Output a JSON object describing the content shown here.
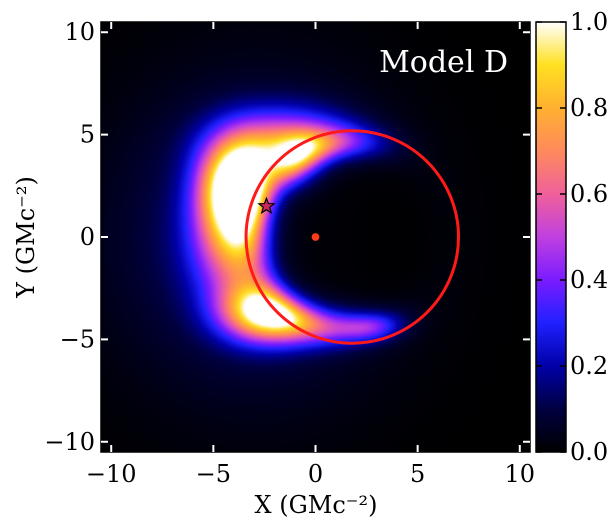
{
  "chart_data": {
    "type": "heatmap",
    "title": "Model D",
    "xlabel": "X (GMc⁻²)",
    "ylabel": "Y (GMc⁻²)",
    "xlim": [
      -10.5,
      10.5
    ],
    "ylim": [
      -10.5,
      10.5
    ],
    "xticks": [
      -10,
      -5,
      0,
      5,
      10
    ],
    "yticks": [
      -10,
      -5,
      0,
      5,
      10
    ],
    "xtick_labels": [
      "−10",
      "−5",
      "0",
      "5",
      "10"
    ],
    "ytick_labels": [
      "−10",
      "−5",
      "0",
      "5",
      "10"
    ],
    "grid": false,
    "colormap": "gnuplot2",
    "colorbar": {
      "range": [
        0.0,
        1.0
      ],
      "ticks": [
        0.0,
        0.2,
        0.4,
        0.6,
        0.8,
        1.0
      ],
      "tick_labels": [
        "0.0",
        "0.2",
        "0.4",
        "0.6",
        "0.8",
        "1.0"
      ]
    },
    "emission_blobs": [
      {
        "x": -3.8,
        "y": 2.5,
        "sx": 1.2,
        "sy": 1.5,
        "amp": 1.0
      },
      {
        "x": -3.6,
        "y": 0.0,
        "sx": 1.5,
        "sy": 2.0,
        "amp": 0.7
      },
      {
        "x": -0.6,
        "y": 3.2,
        "sx": 0.9,
        "sy": 0.9,
        "amp": 0.85
      },
      {
        "x": 0.8,
        "y": 4.3,
        "sx": 1.6,
        "sy": 0.7,
        "amp": 0.55
      },
      {
        "x": -2.4,
        "y": -3.6,
        "sx": 1.5,
        "sy": 1.0,
        "amp": 0.85
      },
      {
        "x": 0.4,
        "y": -3.9,
        "sx": 1.8,
        "sy": 0.8,
        "amp": 0.75
      },
      {
        "x": 2.5,
        "y": -4.2,
        "sx": 1.0,
        "sy": 0.5,
        "amp": 0.45
      },
      {
        "x": -1.5,
        "y": 4.5,
        "sx": 2.2,
        "sy": 1.2,
        "amp": 0.5
      },
      {
        "x": -3.0,
        "y": 0.0,
        "sx": 4.5,
        "sy": 5.0,
        "amp": 0.18
      }
    ],
    "shadow": {
      "center": [
        1.8,
        0.0
      ],
      "radius": 5.2
    },
    "overlays": {
      "circle": {
        "center": [
          1.8,
          0.0
        ],
        "radius": 5.2,
        "color": "#ff1a1a"
      },
      "star_marker": {
        "x": -2.4,
        "y": 1.5,
        "color": "#c8285a"
      },
      "point_marker": {
        "x": 0.0,
        "y": 0.0,
        "color": "#ff3a1a"
      }
    }
  }
}
